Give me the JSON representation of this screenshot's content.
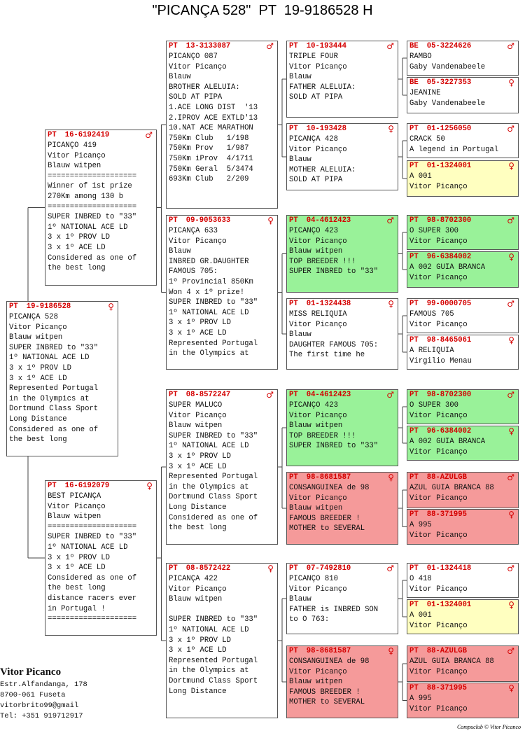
{
  "title": "\"PICANÇA 528\"  PT  19-9186528 H",
  "boxes": [
    {
      "country": "PT",
      "ring": "19-9186528",
      "sex": "♀",
      "color": "#ffffff",
      "lines": [
        "PICANÇA 528",
        "Vitor Picanço",
        "Blauw witpen",
        "SUPER INBRED to \"33\"",
        "1º NATIONAL ACE LD",
        "3 x 1º PROV LD",
        "3 x 1º ACE LD",
        "Represented Portugal",
        "in the Olympics at",
        "Dortmund Class Sport",
        "Long Distance",
        "Considered as one of",
        "the best long"
      ]
    },
    {
      "country": "PT",
      "ring": "16-6192419",
      "sex": "♂",
      "color": "#ffffff",
      "lines": [
        "PICANÇO 419",
        "Vitor Picanço",
        "Blauw witpen",
        "====================",
        "Winner of 1st prize",
        "270Km among 130 b",
        "====================",
        "SUPER INBRED to \"33\"",
        "1º NATIONAL ACE LD",
        "3 x 1º PROV LD",
        "3 x 1º ACE LD",
        "Considered as one of",
        "the best long"
      ]
    },
    {
      "country": "PT",
      "ring": "16-6192079",
      "sex": "♀",
      "color": "#ffffff",
      "lines": [
        "BEST PICANÇA",
        "Vitor Picanço",
        "Blauw witpen",
        "====================",
        "SUPER INBRED to \"33\"",
        "1º NATIONAL ACE LD",
        "3 x 1º PROV LD",
        "3 x 1º ACE LD",
        "Considered as one of",
        "the best long",
        "distance racers ever",
        "in Portugal !",
        "===================="
      ]
    },
    {
      "country": "PT",
      "ring": "13-3133087",
      "sex": "♂",
      "color": "#ffffff",
      "lines": [
        "PICANÇO 087",
        "Vitor Picanço",
        "Blauw",
        "BROTHER ALELUIA:",
        "SOLD AT PIPA",
        "1.ACE LONG DIST  '13",
        "2.IPROV ACE EXTLD'13",
        "10.NAT ACE MARATHON",
        "750Km Club   1/198",
        "750Km Prov   1/987",
        "750Km iProv  4/1711",
        "750Km Geral  5/3474",
        "693Km Club   2/209"
      ]
    },
    {
      "country": "PT",
      "ring": "09-9053633",
      "sex": "♀",
      "color": "#ffffff",
      "lines": [
        "PICANÇA 633",
        "Vitor Picanço",
        "Blauw",
        "INBRED GR.DAUGHTER",
        "FAMOUS 705:",
        "1º Provincial 850Km",
        "Won 4 x 1º prize!",
        "SUPER INBRED to \"33\"",
        "1º NATIONAL ACE LD",
        "3 x 1º PROV LD",
        "3 x 1º ACE LD",
        "Represented Portugal",
        "in the Olympics at"
      ]
    },
    {
      "country": "PT",
      "ring": "08-8572247",
      "sex": "♂",
      "color": "#ffffff",
      "lines": [
        "SUPER MALUCO",
        "Vitor Picanço",
        "Blauw witpen",
        "SUPER INBRED to \"33\"",
        "1º NATIONAL ACE LD",
        "3 x 1º PROV LD",
        "3 x 1º ACE LD",
        "Represented Portugal",
        "in the Olympics at",
        "Dortmund Class Sport",
        "Long Distance",
        "Considered as one of",
        "the best long"
      ]
    },
    {
      "country": "PT",
      "ring": "08-8572422",
      "sex": "♀",
      "color": "#ffffff",
      "lines": [
        "PICANÇA 422",
        "Vitor Picanço",
        "Blauw witpen"
      ],
      "notes": [
        "SUPER INBRED to \"33\"",
        "1º NATIONAL ACE LD",
        "3 x 1º PROV LD",
        "3 x 1º ACE LD",
        "Represented Portugal",
        "in the Olympics at",
        "Dortmund Class Sport",
        "Long Distance"
      ]
    },
    {
      "country": "PT",
      "ring": "10-193444",
      "sex": "♂",
      "color": "#ffffff",
      "lines": [
        "TRIPLE FOUR",
        "Vitor Picanço",
        "Blauw",
        "FATHER ALELUIA:",
        "SOLD AT PIPA"
      ]
    },
    {
      "country": "PT",
      "ring": "10-193428",
      "sex": "♀",
      "color": "#ffffff",
      "lines": [
        "PICANÇA 428",
        "Vitor Picanço",
        "Blauw",
        "MOTHER ALELUIA:",
        "SOLD AT PIPA"
      ]
    },
    {
      "country": "PT",
      "ring": "04-4612423",
      "sex": "♂",
      "color": "#99f299",
      "lines": [
        "PICANÇO 423",
        "Vitor Picanço",
        "Blauw witpen",
        "TOP BREEDER !!!",
        "SUPER INBRED to \"33\""
      ]
    },
    {
      "country": "PT",
      "ring": "01-1324438",
      "sex": "♀",
      "color": "#ffffff",
      "lines": [
        "MISS RELIQUIA",
        "Vitor Picanço",
        "Blauw",
        "DAUGHTER FAMOUS 705:",
        "The first time he"
      ]
    },
    {
      "country": "PT",
      "ring": "04-4612423",
      "sex": "♂",
      "color": "#99f299",
      "lines": [
        "PICANÇO 423",
        "Vitor Picanço",
        "Blauw witpen",
        "TOP BREEDER !!!",
        "SUPER INBRED to \"33\""
      ]
    },
    {
      "country": "PT",
      "ring": "98-8681587",
      "sex": "♀",
      "color": "#f59a9a",
      "lines": [
        "CONSANGUINEA de 98",
        "Vitor Picanço",
        "Blauw witpen",
        "FAMOUS BREEDER !",
        "MOTHER to SEVERAL"
      ]
    },
    {
      "country": "PT",
      "ring": "07-7492810",
      "sex": "♂",
      "color": "#ffffff",
      "lines": [
        "PICANÇO 810",
        "Vitor Picanço",
        "Blauw",
        "FATHER is INBRED SON",
        "to O 763:"
      ]
    },
    {
      "country": "PT",
      "ring": "98-8681587",
      "sex": "♀",
      "color": "#f59a9a",
      "lines": [
        "CONSANGUINEA de 98",
        "Vitor Picanço",
        "Blauw witpen",
        "FAMOUS BREEDER !",
        "MOTHER to SEVERAL"
      ]
    },
    {
      "country": "BE",
      "ring": "05-3224626",
      "sex": "♂",
      "color": "#ffffff",
      "lines": [
        "RAMBO",
        "Gaby Vandenabeele"
      ]
    },
    {
      "country": "BE",
      "ring": "05-3227353",
      "sex": "♀",
      "color": "#ffffff",
      "lines": [
        "JEANINE",
        "Gaby Vandenabeele"
      ]
    },
    {
      "country": "PT",
      "ring": "01-1256050",
      "sex": "♂",
      "color": "#ffffff",
      "lines": [
        "CRACK 50",
        "A legend in Portugal"
      ]
    },
    {
      "country": "PT",
      "ring": "01-1324001",
      "sex": "♀",
      "color": "#ffffc0",
      "lines": [
        "A 001",
        "Vitor Picanço"
      ]
    },
    {
      "country": "PT",
      "ring": "98-8702300",
      "sex": "♂",
      "color": "#99f299",
      "lines": [
        "O SUPER 300",
        "Vitor Picanço"
      ]
    },
    {
      "country": "PT",
      "ring": "96-6384002",
      "sex": "♀",
      "color": "#99f299",
      "lines": [
        "A 002 GUIA BRANCA",
        "Vitor Picanço"
      ]
    },
    {
      "country": "PT",
      "ring": "99-0000705",
      "sex": "♂",
      "color": "#ffffff",
      "lines": [
        "FAMOUS 705",
        "Vitor Picanço"
      ]
    },
    {
      "country": "PT",
      "ring": "98-8465061",
      "sex": "♀",
      "color": "#ffffff",
      "lines": [
        "A RELIQUIA",
        "Virgilio Menau"
      ]
    },
    {
      "country": "PT",
      "ring": "98-8702300",
      "sex": "♂",
      "color": "#99f299",
      "lines": [
        "O SUPER 300",
        "Vitor Picanço"
      ]
    },
    {
      "country": "PT",
      "ring": "96-6384002",
      "sex": "♀",
      "color": "#99f299",
      "lines": [
        "A 002 GUIA BRANCA",
        "Vitor Picanço"
      ]
    },
    {
      "country": "PT",
      "ring": "88-AZULGB",
      "sex": "♂",
      "color": "#f59a9a",
      "lines": [
        "AZUL GUIA BRANCA 88",
        "Vitor Picanço"
      ]
    },
    {
      "country": "PT",
      "ring": "88-371995",
      "sex": "♀",
      "color": "#f59a9a",
      "lines": [
        "A 995",
        "Vitor Picanço"
      ]
    },
    {
      "country": "PT",
      "ring": "01-1324418",
      "sex": "♂",
      "color": "#ffffff",
      "lines": [
        "O 418",
        "Vitor Picanço"
      ]
    },
    {
      "country": "PT",
      "ring": "01-1324001",
      "sex": "♀",
      "color": "#ffffc0",
      "lines": [
        "A 001",
        "Vitor Picanço"
      ]
    },
    {
      "country": "PT",
      "ring": "88-AZULGB",
      "sex": "♂",
      "color": "#f59a9a",
      "lines": [
        "AZUL GUIA BRANCA 88",
        "Vitor Picanço"
      ]
    },
    {
      "country": "PT",
      "ring": "88-371995",
      "sex": "♀",
      "color": "#f59a9a",
      "lines": [
        "A 995",
        "Vitor Picanço"
      ]
    }
  ],
  "owner": {
    "name": "Vitor Picanco",
    "address": [
      "Estr.Alfandanga, 178",
      "8700-061 Fuseta",
      "vitorbrito99@gmail",
      "Tel: +351 919712917"
    ]
  },
  "credit": "Compuclub © Vitor Picanco"
}
